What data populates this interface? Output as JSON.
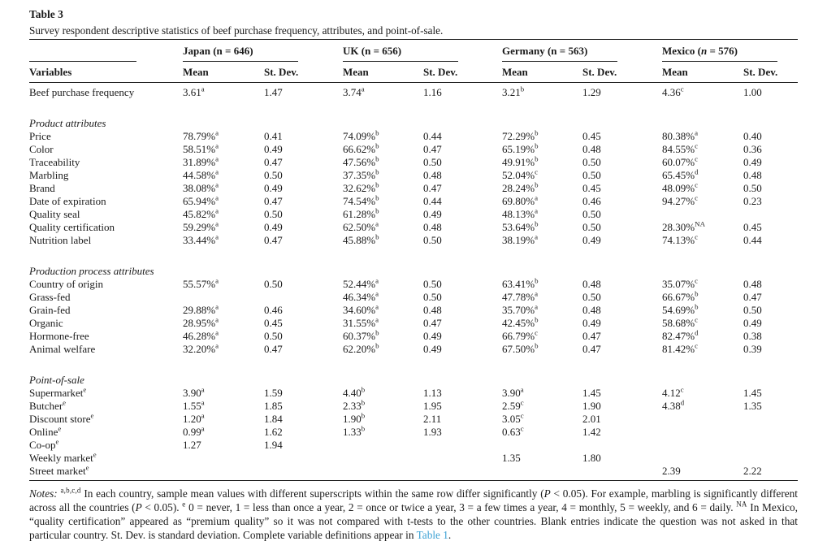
{
  "page": {
    "title": "Table 3",
    "caption": "Survey respondent descriptive statistics of beef purchase frequency, attributes, and point-of-sale."
  },
  "colors": {
    "text": "#1a1a1a",
    "link_blue": "#3ba1d4"
  },
  "table": {
    "col_headers": {
      "variables": "Variables",
      "mean": "Mean",
      "sd": "St. Dev."
    },
    "groups": [
      {
        "country": "Japan",
        "n": "646",
        "n_italic": false
      },
      {
        "country": "UK",
        "n": "656",
        "n_italic": false
      },
      {
        "country": "Germany",
        "n": "563",
        "n_italic": false
      },
      {
        "country": "Mexico",
        "n": "576",
        "n_italic": true
      }
    ],
    "rows": [
      {
        "type": "data",
        "label": "Beef purchase frequency",
        "label_sup": "",
        "cells": [
          {
            "v": "3.61",
            "s": "a"
          },
          {
            "v": "1.47"
          },
          {
            "v": "3.74",
            "s": "a"
          },
          {
            "v": "1.16"
          },
          {
            "v": "3.21",
            "s": "b"
          },
          {
            "v": "1.29"
          },
          {
            "v": "4.36",
            "s": "c"
          },
          {
            "v": "1.00"
          }
        ]
      },
      {
        "type": "spacer"
      },
      {
        "type": "section",
        "label": "Product attributes"
      },
      {
        "type": "data",
        "label": "Price",
        "label_sup": "",
        "cells": [
          {
            "v": "78.79%",
            "s": "a"
          },
          {
            "v": "0.41"
          },
          {
            "v": "74.09%",
            "s": "b"
          },
          {
            "v": "0.44"
          },
          {
            "v": "72.29%",
            "s": "b"
          },
          {
            "v": "0.45"
          },
          {
            "v": "80.38%",
            "s": "a"
          },
          {
            "v": "0.40"
          }
        ]
      },
      {
        "type": "data",
        "label": "Color",
        "label_sup": "",
        "cells": [
          {
            "v": "58.51%",
            "s": "a"
          },
          {
            "v": "0.49"
          },
          {
            "v": "66.62%",
            "s": "b"
          },
          {
            "v": "0.47"
          },
          {
            "v": "65.19%",
            "s": "b"
          },
          {
            "v": "0.48"
          },
          {
            "v": "84.55%",
            "s": "c"
          },
          {
            "v": "0.36"
          }
        ]
      },
      {
        "type": "data",
        "label": "Traceability",
        "label_sup": "",
        "cells": [
          {
            "v": "31.89%",
            "s": "a"
          },
          {
            "v": "0.47"
          },
          {
            "v": "47.56%",
            "s": "b"
          },
          {
            "v": "0.50"
          },
          {
            "v": "49.91%",
            "s": "b"
          },
          {
            "v": "0.50"
          },
          {
            "v": "60.07%",
            "s": "c"
          },
          {
            "v": "0.49"
          }
        ]
      },
      {
        "type": "data",
        "label": "Marbling",
        "label_sup": "",
        "cells": [
          {
            "v": "44.58%",
            "s": "a"
          },
          {
            "v": "0.50"
          },
          {
            "v": "37.35%",
            "s": "b"
          },
          {
            "v": "0.48"
          },
          {
            "v": "52.04%",
            "s": "c"
          },
          {
            "v": "0.50"
          },
          {
            "v": "65.45%",
            "s": "d"
          },
          {
            "v": "0.48"
          }
        ]
      },
      {
        "type": "data",
        "label": "Brand",
        "label_sup": "",
        "cells": [
          {
            "v": "38.08%",
            "s": "a"
          },
          {
            "v": "0.49"
          },
          {
            "v": "32.62%",
            "s": "b"
          },
          {
            "v": "0.47"
          },
          {
            "v": "28.24%",
            "s": "b"
          },
          {
            "v": "0.45"
          },
          {
            "v": "48.09%",
            "s": "c"
          },
          {
            "v": "0.50"
          }
        ]
      },
      {
        "type": "data",
        "label": "Date of expiration",
        "label_sup": "",
        "cells": [
          {
            "v": "65.94%",
            "s": "a"
          },
          {
            "v": "0.47"
          },
          {
            "v": "74.54%",
            "s": "b"
          },
          {
            "v": "0.44"
          },
          {
            "v": "69.80%",
            "s": "a"
          },
          {
            "v": "0.46"
          },
          {
            "v": "94.27%",
            "s": "c"
          },
          {
            "v": "0.23"
          }
        ]
      },
      {
        "type": "data",
        "label": "Quality seal",
        "label_sup": "",
        "cells": [
          {
            "v": "45.82%",
            "s": "a"
          },
          {
            "v": "0.50"
          },
          {
            "v": "61.28%",
            "s": "b"
          },
          {
            "v": "0.49"
          },
          {
            "v": "48.13%",
            "s": "a"
          },
          {
            "v": "0.50"
          },
          null,
          null
        ]
      },
      {
        "type": "data",
        "label": "Quality certification",
        "label_sup": "",
        "cells": [
          {
            "v": "59.29%",
            "s": "a"
          },
          {
            "v": "0.49"
          },
          {
            "v": "62.50%",
            "s": "a"
          },
          {
            "v": "0.48"
          },
          {
            "v": "53.64%",
            "s": "b"
          },
          {
            "v": "0.50"
          },
          {
            "v": "28.30%",
            "s": "NA"
          },
          {
            "v": "0.45"
          }
        ]
      },
      {
        "type": "data",
        "label": "Nutrition label",
        "label_sup": "",
        "cells": [
          {
            "v": "33.44%",
            "s": "a"
          },
          {
            "v": "0.47"
          },
          {
            "v": "45.88%",
            "s": "b"
          },
          {
            "v": "0.50"
          },
          {
            "v": "38.19%",
            "s": "a"
          },
          {
            "v": "0.49"
          },
          {
            "v": "74.13%",
            "s": "c"
          },
          {
            "v": "0.44"
          }
        ]
      },
      {
        "type": "spacer"
      },
      {
        "type": "section",
        "label": "Production process attributes"
      },
      {
        "type": "data",
        "label": "Country of origin",
        "label_sup": "",
        "cells": [
          {
            "v": "55.57%",
            "s": "a"
          },
          {
            "v": "0.50"
          },
          {
            "v": "52.44%",
            "s": "a"
          },
          {
            "v": "0.50"
          },
          {
            "v": "63.41%",
            "s": "b"
          },
          {
            "v": "0.48"
          },
          {
            "v": "35.07%",
            "s": "c"
          },
          {
            "v": "0.48"
          }
        ]
      },
      {
        "type": "data",
        "label": "Grass-fed",
        "label_sup": "",
        "cells": [
          null,
          null,
          {
            "v": "46.34%",
            "s": "a"
          },
          {
            "v": "0.50"
          },
          {
            "v": "47.78%",
            "s": "a"
          },
          {
            "v": "0.50"
          },
          {
            "v": "66.67%",
            "s": "b"
          },
          {
            "v": "0.47"
          }
        ]
      },
      {
        "type": "data",
        "label": "Grain-fed",
        "label_sup": "",
        "cells": [
          {
            "v": "29.88%",
            "s": "a"
          },
          {
            "v": "0.46"
          },
          {
            "v": "34.60%",
            "s": "a"
          },
          {
            "v": "0.48"
          },
          {
            "v": "35.70%",
            "s": "a"
          },
          {
            "v": "0.48"
          },
          {
            "v": "54.69%",
            "s": "b"
          },
          {
            "v": "0.50"
          }
        ]
      },
      {
        "type": "data",
        "label": "Organic",
        "label_sup": "",
        "cells": [
          {
            "v": "28.95%",
            "s": "a"
          },
          {
            "v": "0.45"
          },
          {
            "v": "31.55%",
            "s": "a"
          },
          {
            "v": "0.47"
          },
          {
            "v": "42.45%",
            "s": "b"
          },
          {
            "v": "0.49"
          },
          {
            "v": "58.68%",
            "s": "c"
          },
          {
            "v": "0.49"
          }
        ]
      },
      {
        "type": "data",
        "label": "Hormone-free",
        "label_sup": "",
        "cells": [
          {
            "v": "46.28%",
            "s": "a"
          },
          {
            "v": "0.50"
          },
          {
            "v": "60.37%",
            "s": "b"
          },
          {
            "v": "0.49"
          },
          {
            "v": "66.79%",
            "s": "c"
          },
          {
            "v": "0.47"
          },
          {
            "v": "82.47%",
            "s": "d"
          },
          {
            "v": "0.38"
          }
        ]
      },
      {
        "type": "data",
        "label": "Animal welfare",
        "label_sup": "",
        "cells": [
          {
            "v": "32.20%",
            "s": "a"
          },
          {
            "v": "0.47"
          },
          {
            "v": "62.20%",
            "s": "b"
          },
          {
            "v": "0.49"
          },
          {
            "v": "67.50%",
            "s": "b"
          },
          {
            "v": "0.47"
          },
          {
            "v": "81.42%",
            "s": "c"
          },
          {
            "v": "0.39"
          }
        ]
      },
      {
        "type": "spacer"
      },
      {
        "type": "section",
        "label": "Point-of-sale"
      },
      {
        "type": "data",
        "label": "Supermarket",
        "label_sup": "e",
        "cells": [
          {
            "v": "3.90",
            "s": "a"
          },
          {
            "v": "1.59"
          },
          {
            "v": "4.40",
            "s": "b"
          },
          {
            "v": "1.13"
          },
          {
            "v": "3.90",
            "s": "a"
          },
          {
            "v": "1.45"
          },
          {
            "v": "4.12",
            "s": "c"
          },
          {
            "v": "1.45"
          }
        ]
      },
      {
        "type": "data",
        "label": "Butcher",
        "label_sup": "e",
        "cells": [
          {
            "v": "1.55",
            "s": "a"
          },
          {
            "v": "1.85"
          },
          {
            "v": "2.33",
            "s": "b"
          },
          {
            "v": "1.95"
          },
          {
            "v": "2.59",
            "s": "c"
          },
          {
            "v": "1.90"
          },
          {
            "v": "4.38",
            "s": "d"
          },
          {
            "v": "1.35"
          }
        ]
      },
      {
        "type": "data",
        "label": "Discount store",
        "label_sup": "e",
        "cells": [
          {
            "v": "1.20",
            "s": "a"
          },
          {
            "v": "1.84"
          },
          {
            "v": "1.90",
            "s": "b"
          },
          {
            "v": "2.11"
          },
          {
            "v": "3.05",
            "s": "c"
          },
          {
            "v": "2.01"
          },
          null,
          null
        ]
      },
      {
        "type": "data",
        "label": "Online",
        "label_sup": "e",
        "cells": [
          {
            "v": "0.99",
            "s": "a"
          },
          {
            "v": "1.62"
          },
          {
            "v": "1.33",
            "s": "b"
          },
          {
            "v": "1.93"
          },
          {
            "v": "0.63",
            "s": "c"
          },
          {
            "v": "1.42"
          },
          null,
          null
        ]
      },
      {
        "type": "data",
        "label": "Co-op",
        "label_sup": "e",
        "cells": [
          {
            "v": "1.27"
          },
          {
            "v": "1.94"
          },
          null,
          null,
          null,
          null,
          null,
          null
        ]
      },
      {
        "type": "data",
        "label": "Weekly market",
        "label_sup": "e",
        "cells": [
          null,
          null,
          null,
          null,
          {
            "v": "1.35"
          },
          {
            "v": "1.80"
          },
          null,
          null
        ]
      },
      {
        "type": "data",
        "label": "Street market",
        "label_sup": "e",
        "cells": [
          null,
          null,
          null,
          null,
          null,
          null,
          {
            "v": "2.39"
          },
          {
            "v": "2.22"
          }
        ]
      }
    ]
  },
  "notes": {
    "segments": [
      {
        "t": "Notes:",
        "style": "italic"
      },
      {
        "t": " "
      },
      {
        "t": "a,b,c,d",
        "style": "sup"
      },
      {
        "t": " In each country, sample mean values with different superscripts within the same row differ significantly ("
      },
      {
        "t": "P",
        "style": "italic"
      },
      {
        "t": " < 0.05). For example, marbling is significantly different across all the countries ("
      },
      {
        "t": "P",
        "style": "italic"
      },
      {
        "t": " < 0.05). "
      },
      {
        "t": "e",
        "style": "sup"
      },
      {
        "t": " 0 = never, 1 = less than once a year, 2 = once or twice a year, 3 = a few times a year, 4 = monthly, 5 = weekly, and 6 = daily. "
      },
      {
        "t": "NA",
        "style": "sup"
      },
      {
        "t": " In Mexico, “quality certification” appeared as “premium quality” so it was not compared with t-tests to the other countries. Blank entries indicate the question was not asked in that particular country. St. Dev. is standard deviation. Complete variable definitions appear in "
      },
      {
        "t": "Table 1",
        "style": "link"
      },
      {
        "t": "."
      }
    ]
  }
}
